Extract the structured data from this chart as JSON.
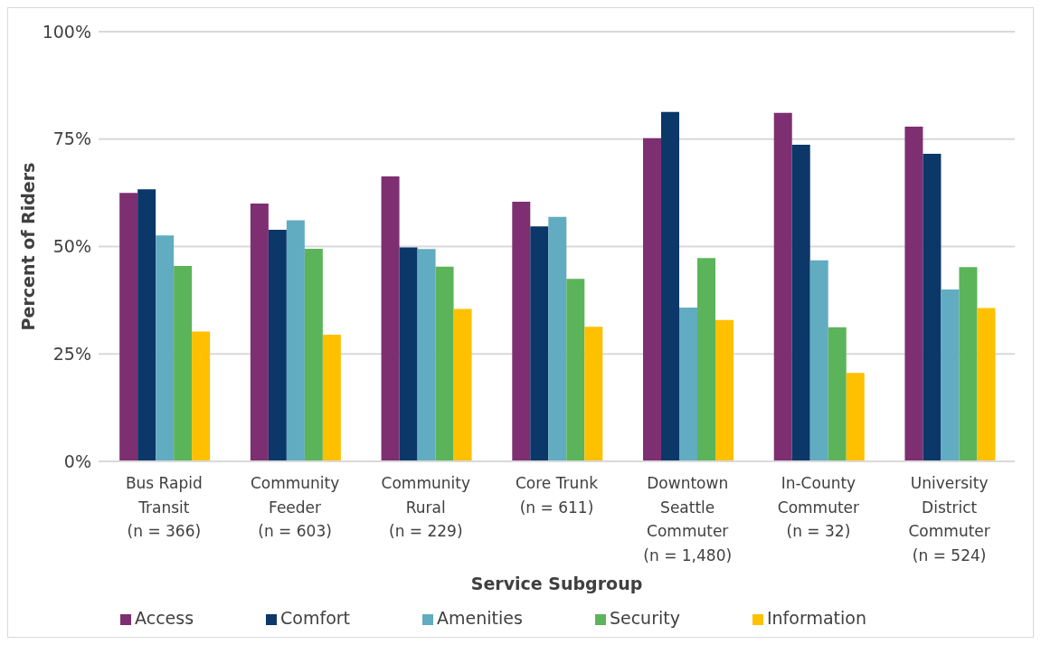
{
  "chart_data": {
    "type": "bar",
    "xlabel": "Service Subgroup",
    "ylabel": "Percent of Riders",
    "categories": [
      "Bus Rapid Transit (n = 366)",
      "Community Feeder (n = 603)",
      "Community Rural (n = 229)",
      "Core Trunk (n = 611)",
      "Downtown Seattle Commuter (n = 1,480)",
      "In-County Commuter (n = 32)",
      "University District Commuter (n = 524)"
    ],
    "series": [
      {
        "name": "Access",
        "color": "#7e2f72",
        "values": [
          62.5,
          60,
          66.3,
          60.4,
          75.2,
          81.1,
          77.9
        ]
      },
      {
        "name": "Comfort",
        "color": "#0b3769",
        "values": [
          63.3,
          53.9,
          49.8,
          54.7,
          81.3,
          73.7,
          71.6
        ]
      },
      {
        "name": "Amenities",
        "color": "#61acc1",
        "values": [
          52.6,
          56.1,
          49.4,
          56.9,
          35.8,
          46.8,
          40
        ]
      },
      {
        "name": "Security",
        "color": "#5cb45a",
        "values": [
          45.5,
          49.5,
          45.3,
          42.5,
          47.3,
          31.2,
          45.2
        ]
      },
      {
        "name": "Information",
        "color": "#ffc000",
        "values": [
          30.2,
          29.5,
          35.5,
          31.3,
          32.9,
          20.6,
          35.7
        ]
      }
    ],
    "ylim": [
      0,
      100
    ],
    "yticks": [
      {
        "value": 0,
        "label": "0%"
      },
      {
        "value": 25,
        "label": "25%"
      },
      {
        "value": 50,
        "label": "50%"
      },
      {
        "value": 75,
        "label": "75%"
      },
      {
        "value": 100,
        "label": "100%"
      }
    ],
    "grid": "y",
    "legend": "bottom"
  }
}
